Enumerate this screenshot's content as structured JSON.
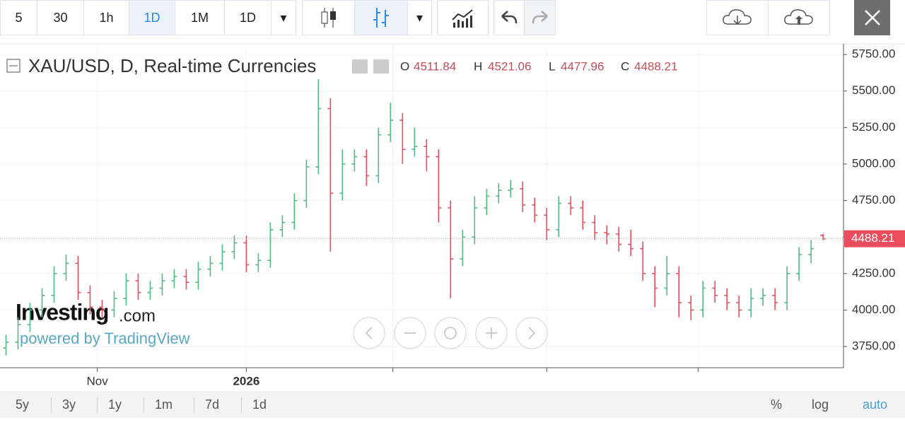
{
  "toolbar": {
    "intervals": [
      "5",
      "30",
      "1h",
      "1D",
      "1M",
      "1D"
    ],
    "active_interval": 3
  },
  "legend": {
    "title": "XAU/USD, D, Real-time Currencies",
    "o": "O",
    "h": "H",
    "l": "L",
    "c": "C"
  },
  "watermark": {
    "brand": "Investing",
    "domain": ".com",
    "powered": "powered by TradingView"
  },
  "ranges": [
    "5y",
    "3y",
    "1y",
    "1m",
    "7d",
    "1d"
  ],
  "scale_options": [
    "%",
    "log",
    "auto"
  ],
  "chart_data": {
    "type": "ohlc",
    "up_color": "#53b987",
    "down_color": "#eb4d5c",
    "open": [
      3740,
      3780,
      3900,
      4000,
      4100,
      4250,
      4320,
      4120,
      4020,
      4000,
      4080,
      4200,
      4120,
      4150,
      4200,
      4230,
      4190,
      4280,
      4320,
      4400,
      4460,
      4310,
      4340,
      4550,
      4600,
      4750,
      4980,
      5380,
      4800,
      5000,
      5050,
      4920,
      5200,
      5300,
      5100,
      5120,
      5050,
      4700,
      4350,
      4500,
      4700,
      4780,
      4820,
      4830,
      4720,
      4650,
      4550,
      4730,
      4700,
      4600,
      4530,
      4520,
      4450,
      4420,
      4250,
      4150,
      4250,
      4050,
      4000,
      4150,
      4100,
      4050,
      4000,
      4080,
      4100,
      4050,
      4250,
      4380,
      4511.84
    ],
    "high": [
      3830,
      3950,
      4050,
      4150,
      4300,
      4380,
      4370,
      4170,
      4070,
      4130,
      4250,
      4250,
      4200,
      4250,
      4280,
      4280,
      4330,
      4370,
      4450,
      4510,
      4510,
      4390,
      4600,
      4650,
      4800,
      5030,
      5580,
      5450,
      5100,
      5100,
      5100,
      5250,
      5420,
      5350,
      5250,
      5170,
      5100,
      4750,
      4550,
      4780,
      4830,
      4870,
      4890,
      4880,
      4770,
      4700,
      4780,
      4780,
      4750,
      4650,
      4580,
      4570,
      4550,
      4470,
      4300,
      4370,
      4300,
      4100,
      4200,
      4200,
      4150,
      4100,
      4150,
      4150,
      4150,
      4300,
      4430,
      4480,
      4521.06
    ],
    "low": [
      3690,
      3730,
      3850,
      3950,
      4050,
      4200,
      4070,
      3970,
      3950,
      3950,
      4030,
      4070,
      4070,
      4100,
      4150,
      4140,
      4140,
      4230,
      4270,
      4350,
      4260,
      4260,
      4290,
      4500,
      4550,
      4700,
      4930,
      4400,
      4750,
      4950,
      4850,
      4870,
      5150,
      5000,
      5050,
      4950,
      4600,
      4080,
      4300,
      4450,
      4650,
      4730,
      4770,
      4670,
      4600,
      4480,
      4500,
      4650,
      4550,
      4480,
      4450,
      4400,
      4370,
      4200,
      4020,
      4100,
      3950,
      3930,
      3950,
      4050,
      4000,
      3950,
      3950,
      4030,
      4000,
      4000,
      4200,
      4320,
      4477.96
    ],
    "close": [
      3780,
      3900,
      4000,
      4100,
      4250,
      4320,
      4120,
      4020,
      4000,
      4080,
      4200,
      4120,
      4150,
      4200,
      4230,
      4190,
      4280,
      4320,
      4400,
      4460,
      4310,
      4340,
      4550,
      4600,
      4750,
      4980,
      5380,
      4800,
      5000,
      5050,
      4920,
      5200,
      5300,
      5100,
      5120,
      5050,
      4700,
      4350,
      4500,
      4700,
      4780,
      4820,
      4830,
      4720,
      4650,
      4550,
      4730,
      4700,
      4600,
      4530,
      4520,
      4450,
      4420,
      4250,
      4150,
      4250,
      4050,
      4000,
      4150,
      4100,
      4050,
      4000,
      4080,
      4100,
      4050,
      4250,
      4380,
      4420,
      4488.21
    ],
    "xlim": [
      -0.5,
      69.7
    ],
    "xticks": [
      {
        "value": 7.6,
        "label": "Nov"
      },
      {
        "value": 20.0,
        "label": "2026"
      },
      {
        "value": 32.2,
        "label": null
      },
      {
        "value": 45.0,
        "label": null
      },
      {
        "value": 57.6,
        "label": null
      }
    ],
    "ylim": [
      3605,
      5823
    ],
    "yticks": [
      {
        "value": 3750,
        "label": "3750.00"
      },
      {
        "value": 4000,
        "label": "4000.00"
      },
      {
        "value": 4250,
        "label": "4250.00"
      },
      {
        "value": 4500,
        "label": "4500.00"
      },
      {
        "value": 4750,
        "label": "4750.00"
      },
      {
        "value": 5000,
        "label": "5000.00"
      },
      {
        "value": 5250,
        "label": "5250.00"
      },
      {
        "value": 5500,
        "label": "5500.00"
      },
      {
        "value": 5750,
        "label": "5750.00"
      }
    ],
    "grid": true,
    "price_line_color": "#eb4d5c"
  }
}
